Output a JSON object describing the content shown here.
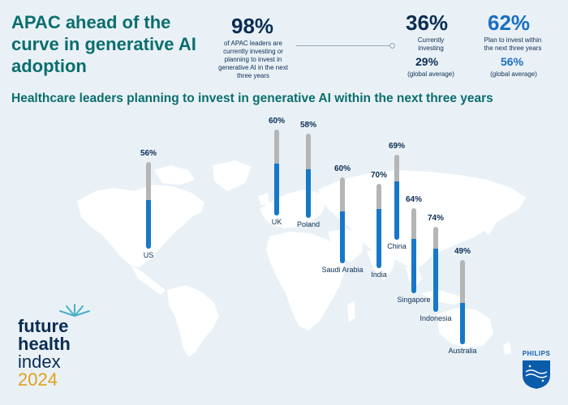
{
  "title": "APAC ahead of the curve in generative AI adoption",
  "stats": {
    "main": {
      "value": "98%",
      "text": "of APAC leaders are currently investing or planning to invest in generative AI in the next three years"
    },
    "investing": {
      "value": "36%",
      "label": "Currently investing",
      "global_value": "29%",
      "global_label": "(global average)"
    },
    "plan": {
      "value": "62%",
      "label": "Plan to invest within the next three years",
      "global_value": "56%",
      "global_label": "(global average)"
    }
  },
  "colors": {
    "title": "#0b6e6e",
    "navy": "#0b2d52",
    "bar_fill": "#1678c8",
    "bar_track": "#b5b5b5",
    "background": "#e9f1f7",
    "map": "#ffffff",
    "brand_orange": "#e0a21a"
  },
  "chart_data": {
    "type": "bar",
    "title": "Healthcare leaders planning to invest in generative AI within the next three years",
    "ylim": [
      0,
      100
    ],
    "categories": [
      "US",
      "UK",
      "Poland",
      "Saudi Arabia",
      "India",
      "China",
      "Singapore",
      "Indonesia",
      "Australia"
    ],
    "values": [
      56,
      60,
      58,
      60,
      70,
      69,
      64,
      74,
      49
    ],
    "value_labels": [
      "56%",
      "60%",
      "58%",
      "60%",
      "70%",
      "69%",
      "64%",
      "74%",
      "49%"
    ]
  },
  "brand": {
    "index_lines": [
      "future",
      "health",
      "index",
      "2024"
    ],
    "logo_text": "PHILIPS",
    "logo_icon": "philips-shield-icon"
  }
}
